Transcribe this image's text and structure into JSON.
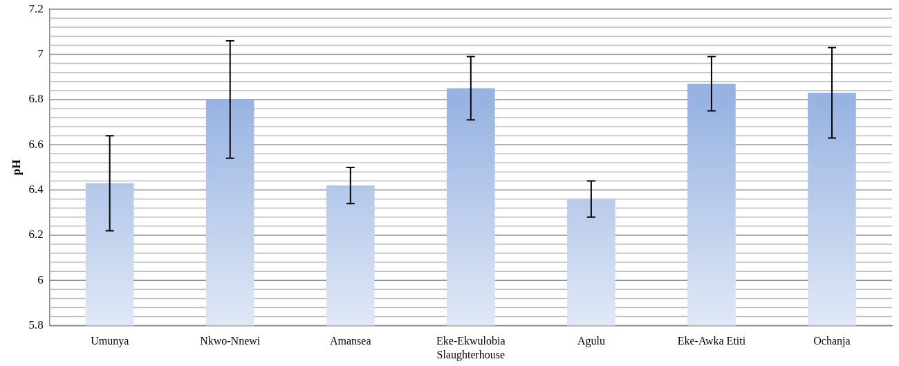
{
  "chart_data": {
    "type": "bar",
    "ylabel": "pH",
    "categories": [
      "Umunya",
      "Nkwo-Nnewi",
      "Amansea",
      "Eke-Ekwulobia Slaughterhouse",
      "Agulu",
      "Eke-Awka Etiti",
      "Ochanja"
    ],
    "values": [
      6.43,
      6.8,
      6.42,
      6.85,
      6.36,
      6.87,
      6.83
    ],
    "errors": [
      0.21,
      0.26,
      0.08,
      0.14,
      0.08,
      0.12,
      0.2
    ],
    "color": "#97b3e2",
    "ylim": [
      5.8,
      7.2
    ],
    "yticks": [
      5.8,
      6,
      6.2,
      6.4,
      6.6,
      6.8,
      7,
      7.2
    ],
    "grid": "y"
  }
}
